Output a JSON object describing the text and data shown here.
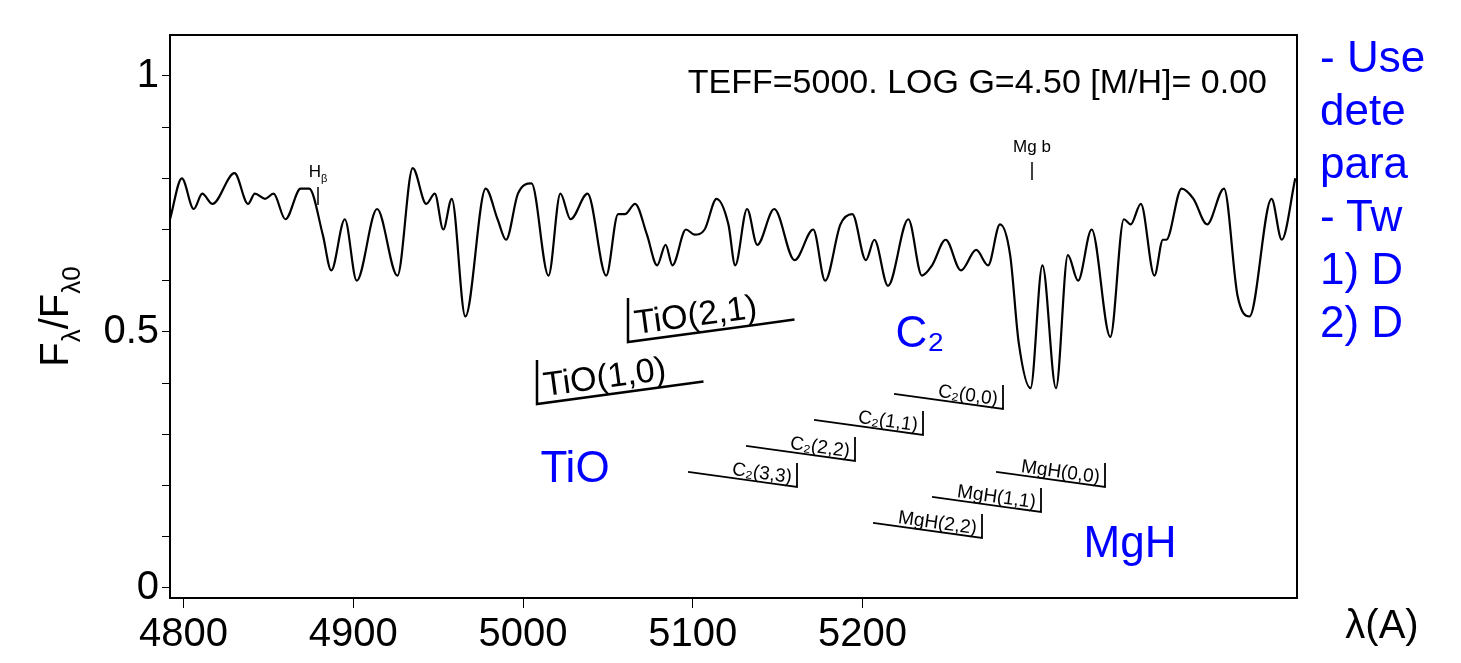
{
  "chart_data": {
    "type": "line",
    "title": "TEFF=5000. LOG G=4.50 [M/H]= 0.00",
    "xlabel": "λ(A)",
    "ylabel": "F$_{λ}$/F$_{λ0}$",
    "x": [
      4792,
      4799,
      4806,
      4811,
      4817,
      4830,
      4838,
      4842,
      4848,
      4853,
      4860,
      4869,
      4874,
      4882,
      4887,
      4895,
      4902,
      4914,
      4926,
      4935,
      4943,
      4948,
      4953,
      4958,
      4966,
      4978,
      4985,
      4990,
      4997,
      5005,
      5015,
      5022,
      5028,
      5038,
      5049,
      5056,
      5060,
      5066,
      5073,
      5079,
      5084,
      5088,
      5096,
      5101,
      5107,
      5114,
      5121,
      5125,
      5132,
      5138,
      5148,
      5160,
      5171,
      5178,
      5187,
      5194,
      5202,
      5207,
      5215,
      5227,
      5235,
      5241,
      5249,
      5258,
      5267,
      5274,
      5281,
      5287,
      5292,
      5299,
      5306,
      5314,
      5321,
      5327,
      5335,
      5346,
      5354,
      5358,
      5364,
      5372,
      5377,
      5379,
      5388,
      5395,
      5403,
      5413,
      5421,
      5428,
      5441,
      5447,
      5455
    ],
    "series": [
      {
        "color": "#000000",
        "values": [
          0.72,
          0.8,
          0.74,
          0.77,
          0.75,
          0.81,
          0.75,
          0.77,
          0.76,
          0.77,
          0.72,
          0.78,
          0.78,
          0.69,
          0.62,
          0.72,
          0.6,
          0.74,
          0.61,
          0.82,
          0.75,
          0.77,
          0.7,
          0.76,
          0.53,
          0.78,
          0.72,
          0.68,
          0.77,
          0.79,
          0.61,
          0.77,
          0.72,
          0.77,
          0.61,
          0.73,
          0.73,
          0.75,
          0.69,
          0.63,
          0.67,
          0.63,
          0.7,
          0.69,
          0.7,
          0.76,
          0.71,
          0.63,
          0.74,
          0.67,
          0.74,
          0.64,
          0.7,
          0.6,
          0.71,
          0.73,
          0.64,
          0.68,
          0.59,
          0.72,
          0.61,
          0.63,
          0.68,
          0.62,
          0.66,
          0.63,
          0.71,
          0.65,
          0.48,
          0.39,
          0.63,
          0.39,
          0.65,
          0.6,
          0.7,
          0.49,
          0.72,
          0.71,
          0.75,
          0.61,
          0.68,
          0.68,
          0.78,
          0.76,
          0.71,
          0.78,
          0.57,
          0.53,
          0.76,
          0.68,
          0.8
        ]
      }
    ],
    "xlim": [
      4792,
      5456
    ],
    "xticks": [
      4800,
      4900,
      5000,
      5100,
      5200
    ],
    "ylim": [
      -0.02,
      1.08
    ],
    "yticks": [
      0,
      {
        "value": 0.1,
        "label": null
      },
      {
        "value": 0.2,
        "label": null
      },
      {
        "value": 0.3,
        "label": null
      },
      {
        "value": 0.4,
        "label": null
      },
      0.5,
      {
        "value": 0.6,
        "label": null
      },
      {
        "value": 0.7,
        "label": null
      },
      {
        "value": 0.8,
        "label": null
      },
      {
        "value": 0.9,
        "label": null
      },
      1
    ],
    "annotations": [
      "H$_{β}$",
      "Mg b",
      "TiO(1,0)",
      "TiO(2,1)",
      "C₂(0,0)",
      "C₂(1,1)",
      "C₂(2,2)",
      "C₂(3,3)",
      "MgH(0,0)",
      "MgH(1,1)",
      "MgH(2,2)",
      "TiO",
      "C₂",
      "MgH",
      "- Use",
      "dete",
      "para",
      "- Tw",
      "1) D",
      "2) D"
    ]
  }
}
